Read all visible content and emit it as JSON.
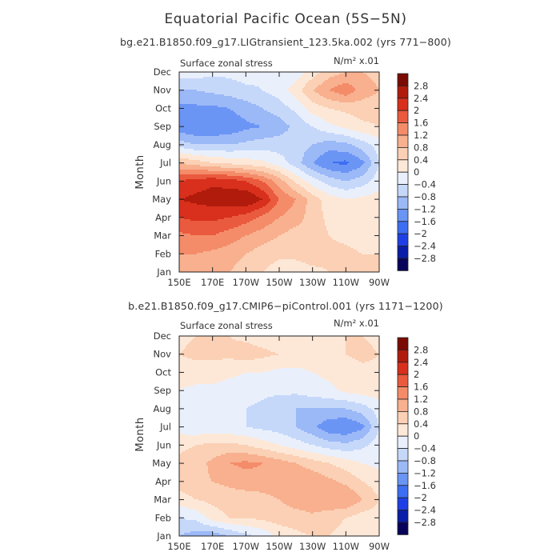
{
  "figure": {
    "title": "Equatorial Pacific Ocean (5S−5N)"
  },
  "chart_data": [
    {
      "type": "heatmap",
      "subtitle": "bg.e21.B1850.f09_g17.LIGtransient_123.5ka.002 (yrs 771−800)",
      "variable_label": "Surface zonal stress",
      "units_label": "N/m² x.01",
      "xlabel": "",
      "ylabel": "Month",
      "x_ticks": [
        "150E",
        "170E",
        "170W",
        "150W",
        "130W",
        "110W",
        "90W"
      ],
      "y_ticks": [
        "Jan",
        "Feb",
        "Mar",
        "Apr",
        "May",
        "Jun",
        "Jul",
        "Aug",
        "Sep",
        "Oct",
        "Nov",
        "Dec"
      ],
      "x_range_deg_east": [
        150,
        270
      ],
      "grid_columns_deg_east": [
        150,
        160,
        170,
        180,
        190,
        200,
        210,
        220,
        230,
        240,
        250,
        260,
        270
      ],
      "values": [
        [
          0.8,
          1.0,
          1.0,
          0.8,
          0.6,
          0.4,
          0.2,
          0.2,
          0.3,
          0.4,
          0.5,
          0.5,
          0.4
        ],
        [
          1.2,
          1.2,
          1.1,
          1.0,
          0.8,
          0.6,
          0.5,
          0.5,
          0.6,
          0.5,
          0.5,
          0.4,
          0.4
        ],
        [
          1.5,
          1.6,
          1.6,
          1.4,
          1.2,
          1.0,
          0.8,
          0.6,
          0.6,
          0.4,
          0.3,
          0.2,
          0.2
        ],
        [
          2.0,
          2.1,
          2.1,
          2.0,
          1.8,
          1.5,
          1.2,
          1.0,
          0.6,
          0.3,
          0.2,
          0.2,
          0.2
        ],
        [
          2.4,
          2.5,
          2.6,
          2.7,
          2.8,
          2.4,
          1.6,
          1.2,
          0.6,
          0.2,
          0.0,
          0.1,
          0.2
        ],
        [
          2.0,
          2.2,
          2.3,
          2.2,
          2.0,
          1.6,
          1.0,
          0.3,
          -0.2,
          -0.6,
          -0.8,
          -0.6,
          -0.2
        ],
        [
          0.8,
          0.6,
          0.4,
          0.3,
          0.2,
          0.1,
          -0.2,
          -0.6,
          -1.2,
          -1.6,
          -1.7,
          -1.3,
          -0.4
        ],
        [
          -0.6,
          -0.8,
          -0.8,
          -0.8,
          -0.7,
          -0.6,
          -0.6,
          -0.6,
          -0.8,
          -1.0,
          -0.9,
          -0.6,
          -0.2
        ],
        [
          -1.5,
          -1.6,
          -1.6,
          -1.5,
          -1.3,
          -1.2,
          -1.0,
          -0.7,
          -0.4,
          -0.1,
          0.1,
          0.3,
          0.4
        ],
        [
          -1.3,
          -1.3,
          -1.3,
          -1.2,
          -1.0,
          -0.8,
          -0.6,
          -0.3,
          0.2,
          0.4,
          0.5,
          0.6,
          0.6
        ],
        [
          -0.8,
          -0.8,
          -0.7,
          -0.6,
          -0.5,
          -0.4,
          -0.2,
          0.2,
          0.8,
          1.2,
          1.5,
          1.0,
          0.8
        ],
        [
          -0.2,
          -0.2,
          -0.3,
          -0.3,
          -0.2,
          -0.3,
          -0.4,
          -0.2,
          0.2,
          0.6,
          0.8,
          0.8,
          0.7
        ]
      ]
    },
    {
      "type": "heatmap",
      "subtitle": "b.e21.B1850.f09_g17.CMIP6−piControl.001 (yrs 1171−1200)",
      "variable_label": "Surface zonal stress",
      "units_label": "N/m² x.01",
      "xlabel": "",
      "ylabel": "Month",
      "x_ticks": [
        "150E",
        "170E",
        "170W",
        "150W",
        "130W",
        "110W",
        "90W"
      ],
      "y_ticks": [
        "Jan",
        "Feb",
        "Mar",
        "Apr",
        "May",
        "Jun",
        "Jul",
        "Aug",
        "Sep",
        "Oct",
        "Nov",
        "Dec"
      ],
      "x_range_deg_east": [
        150,
        270
      ],
      "grid_columns_deg_east": [
        150,
        160,
        170,
        180,
        190,
        200,
        210,
        220,
        230,
        240,
        250,
        260,
        270
      ],
      "values": [
        [
          -0.8,
          -1.0,
          -1.1,
          -0.8,
          -0.5,
          -0.3,
          0.1,
          0.3,
          0.4,
          0.4,
          0.3,
          0.2,
          0.2
        ],
        [
          -0.4,
          -0.3,
          0.2,
          0.4,
          0.4,
          0.5,
          0.6,
          0.6,
          0.7,
          0.5,
          0.4,
          0.2,
          0.2
        ],
        [
          0.2,
          0.4,
          0.5,
          0.6,
          0.6,
          0.6,
          0.8,
          1.0,
          1.1,
          1.2,
          1.2,
          0.8,
          0.4
        ],
        [
          0.6,
          0.7,
          0.8,
          0.9,
          1.0,
          1.1,
          1.2,
          1.2,
          1.1,
          0.9,
          0.7,
          0.4,
          0.2
        ],
        [
          0.5,
          0.6,
          0.9,
          1.2,
          1.3,
          1.2,
          1.0,
          0.8,
          0.6,
          0.4,
          0.2,
          0.0,
          -0.1
        ],
        [
          0.3,
          0.4,
          0.5,
          0.5,
          0.4,
          0.2,
          0.0,
          -0.2,
          -0.4,
          -0.6,
          -0.7,
          -0.5,
          -0.2
        ],
        [
          -0.2,
          -0.3,
          -0.3,
          -0.3,
          -0.4,
          -0.5,
          -0.6,
          -0.8,
          -1.1,
          -1.5,
          -1.6,
          -1.3,
          -0.4
        ],
        [
          -0.2,
          -0.2,
          -0.3,
          -0.3,
          -0.4,
          -0.5,
          -0.7,
          -0.8,
          -0.8,
          -0.8,
          -0.8,
          -0.6,
          -0.2
        ],
        [
          0.0,
          -0.1,
          -0.1,
          -0.2,
          -0.2,
          -0.3,
          -0.3,
          -0.3,
          -0.2,
          -0.1,
          0.1,
          0.2,
          0.2
        ],
        [
          0.2,
          0.2,
          0.2,
          0.1,
          0.0,
          0.0,
          -0.1,
          -0.1,
          0.0,
          0.1,
          0.2,
          0.3,
          0.3
        ],
        [
          0.4,
          0.5,
          0.5,
          0.5,
          0.6,
          0.5,
          0.4,
          0.3,
          0.2,
          0.3,
          0.4,
          0.5,
          0.4
        ],
        [
          0.3,
          0.4,
          0.4,
          0.4,
          0.3,
          0.2,
          0.1,
          0.1,
          0.2,
          0.3,
          0.4,
          0.4,
          0.3
        ]
      ]
    }
  ],
  "colorbar": {
    "levels": [
      -2.8,
      -2.4,
      -2,
      -1.6,
      -1.2,
      -0.8,
      -0.4,
      0,
      0.4,
      0.8,
      1.2,
      1.6,
      2,
      2.4,
      2.8
    ],
    "labels": [
      "−2.8",
      "−2.4",
      "−2",
      "−1.6",
      "−1.2",
      "−0.8",
      "−0.4",
      "0",
      "0.4",
      "0.8",
      "1.2",
      "1.6",
      "2",
      "2.4",
      "2.8"
    ],
    "colors": [
      "#08045a",
      "#0a1ca8",
      "#1f3fe6",
      "#3d6ef2",
      "#6b95f5",
      "#9bb8f7",
      "#c6d8fa",
      "#e9f0fc",
      "#fde8d8",
      "#fbd0b4",
      "#f8b08f",
      "#f48c69",
      "#ea5a3e",
      "#d8301c",
      "#b01b0c",
      "#7a0b04"
    ]
  }
}
